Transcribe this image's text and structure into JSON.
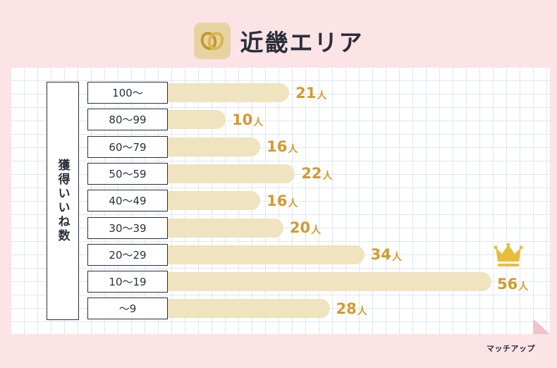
{
  "header": {
    "title": "近畿エリア",
    "logo_icon": "double-ring-logo"
  },
  "brand": {
    "text": "マッチアップ"
  },
  "chart_data": {
    "type": "bar",
    "orientation": "horizontal",
    "ylabel": "獲得いいね数",
    "unit": "人",
    "categories": [
      "100〜",
      "80〜99",
      "60〜79",
      "50〜59",
      "40〜49",
      "30〜39",
      "20〜29",
      "10〜19",
      "〜9"
    ],
    "values": [
      21,
      10,
      16,
      22,
      16,
      20,
      34,
      56,
      28
    ],
    "highlight_index": 7,
    "highlight_icon": "crown-icon",
    "bar_color": "#efe3c0",
    "label_color": "#d39a2e",
    "grid": true
  }
}
